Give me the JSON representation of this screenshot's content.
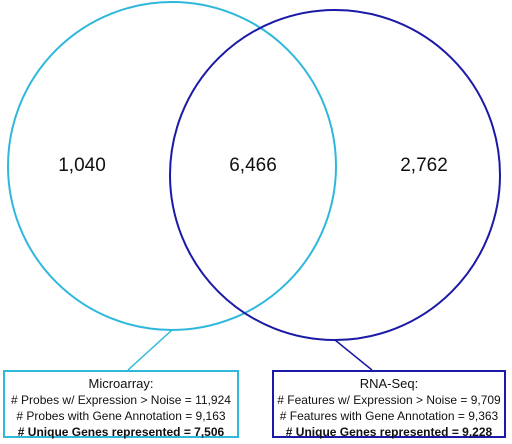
{
  "colors": {
    "microarray": "#2fb8dc",
    "rnaseq": "#1a1aa6"
  },
  "venn": {
    "left_only": "1,040",
    "overlap": "6,466",
    "right_only": "2,762"
  },
  "microarray": {
    "title": "Microarray:",
    "line1": "# Probes w/ Expression > Noise = 11,924",
    "line2": "# Probes with Gene Annotation = 9,163",
    "line3": "# Unique Genes represented = 7,506"
  },
  "rnaseq": {
    "title": "RNA-Seq:",
    "line1": "# Features w/ Expression > Noise = 9,709",
    "line2": "# Features with Gene Annotation = 9,363",
    "line3": "# Unique Genes represented = 9,228"
  }
}
